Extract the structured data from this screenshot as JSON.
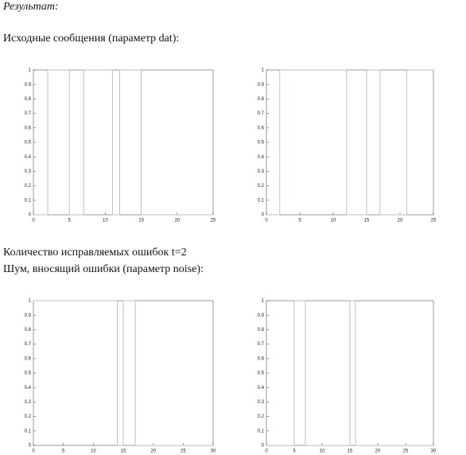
{
  "heading": "Результат:",
  "caption1": "Исходные сообщения (параметр dat):",
  "caption2": "Количество исправляемых ошибок  t=2",
  "caption3": "Шум, вносящий ошибки (параметр noise):",
  "chart_data": [
    {
      "type": "step",
      "x": [
        0,
        2,
        5,
        7,
        11,
        12,
        15
      ],
      "values": [
        0,
        1,
        0,
        1,
        0,
        1,
        0
      ],
      "color": "#b8c0cc",
      "xlim": [
        0,
        25
      ],
      "ylim": [
        0,
        1
      ],
      "xticks": [
        0,
        5,
        10,
        15,
        20,
        25
      ],
      "yticks": [
        0,
        0.1,
        0.2,
        0.3,
        0.4,
        0.5,
        0.6,
        0.7,
        0.8,
        0.9,
        1
      ]
    },
    {
      "type": "step",
      "x": [
        0,
        2,
        12,
        15,
        17,
        21
      ],
      "values": [
        0,
        1,
        0,
        1,
        0,
        1
      ],
      "color": "#b8c0cc",
      "xlim": [
        0,
        25
      ],
      "ylim": [
        0,
        1
      ],
      "xticks": [
        0,
        5,
        10,
        15,
        20,
        25
      ],
      "yticks": [
        0,
        0.1,
        0.2,
        0.3,
        0.4,
        0.5,
        0.6,
        0.7,
        0.8,
        0.9,
        1
      ]
    },
    {
      "type": "step",
      "x": [
        0,
        14,
        15,
        17
      ],
      "values": [
        1,
        0,
        1,
        0
      ],
      "color": "#b8c0cc",
      "xlim": [
        0,
        30
      ],
      "ylim": [
        0,
        1
      ],
      "xticks": [
        0,
        5,
        10,
        15,
        20,
        25,
        30
      ],
      "yticks": [
        0,
        0.1,
        0.2,
        0.3,
        0.4,
        0.5,
        0.6,
        0.7,
        0.8,
        0.9,
        1
      ]
    },
    {
      "type": "step",
      "x": [
        0,
        5,
        7,
        15,
        16
      ],
      "values": [
        0,
        1,
        0,
        1,
        0
      ],
      "color": "#b8c0cc",
      "xlim": [
        0,
        30
      ],
      "ylim": [
        0,
        1
      ],
      "xticks": [
        0,
        5,
        10,
        15,
        20,
        25,
        30
      ],
      "yticks": [
        0,
        0.1,
        0.2,
        0.3,
        0.4,
        0.5,
        0.6,
        0.7,
        0.8,
        0.9,
        1
      ]
    }
  ]
}
